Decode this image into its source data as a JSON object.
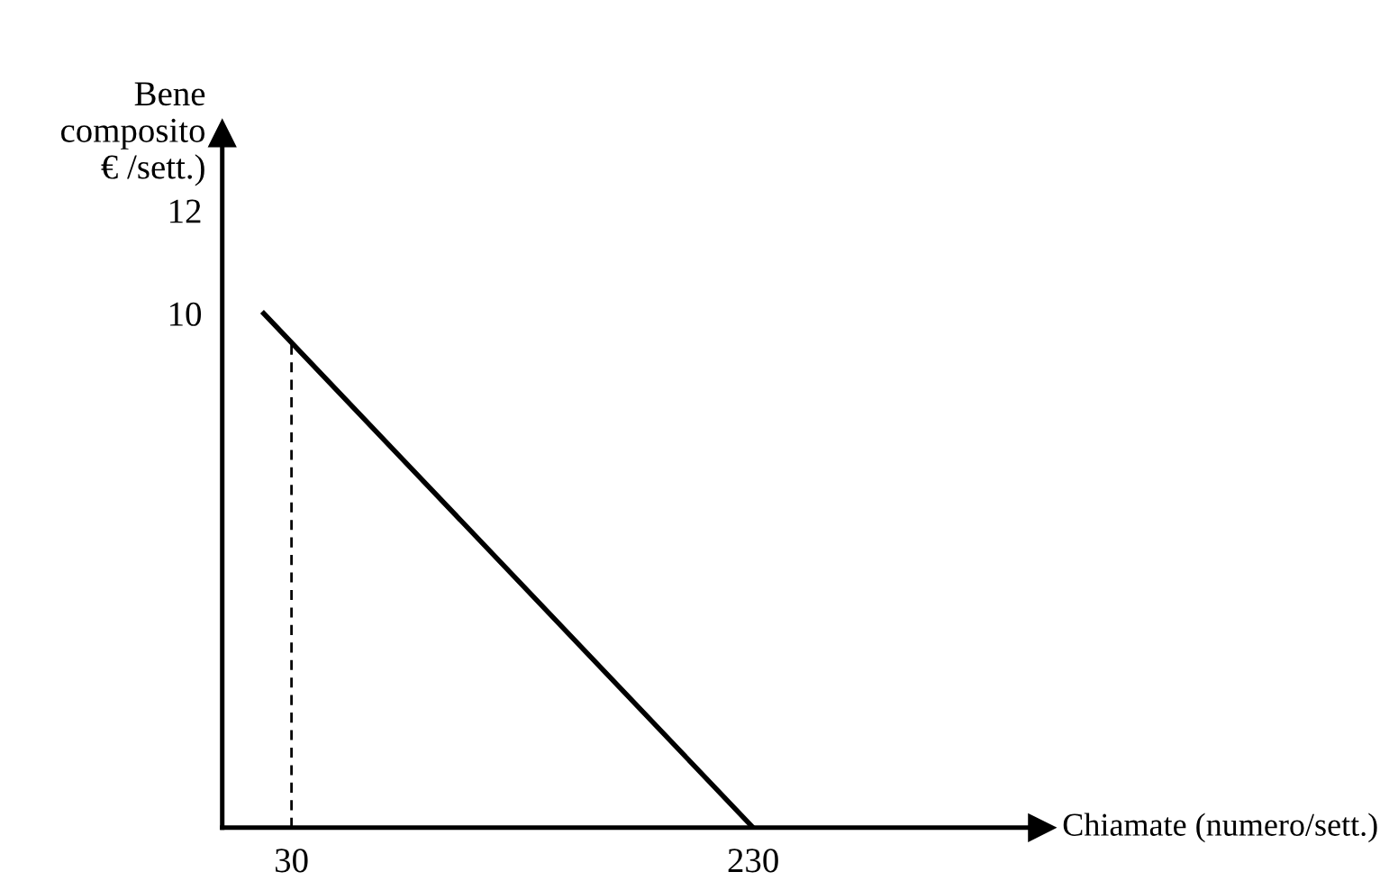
{
  "chart_data": {
    "type": "line",
    "xlabel": "Chiamate (numero/sett.)",
    "ylabel": "Bene\ncomposito\n€ /sett.)",
    "xlim": [
      0,
      355
    ],
    "ylim": [
      0,
      13.5
    ],
    "xticks": [
      30,
      230
    ],
    "yticks": [
      10,
      12
    ],
    "grid": false,
    "legend": false,
    "marker": "none",
    "series": [
      {
        "color": "#000000",
        "x": [
          18,
          230
        ],
        "values": [
          10,
          0
        ],
        "line_style": "solid"
      },
      {
        "color": "#000000",
        "x": [
          30,
          30
        ],
        "values": [
          0,
          9.4
        ],
        "line_style": "dashed"
      }
    ]
  }
}
